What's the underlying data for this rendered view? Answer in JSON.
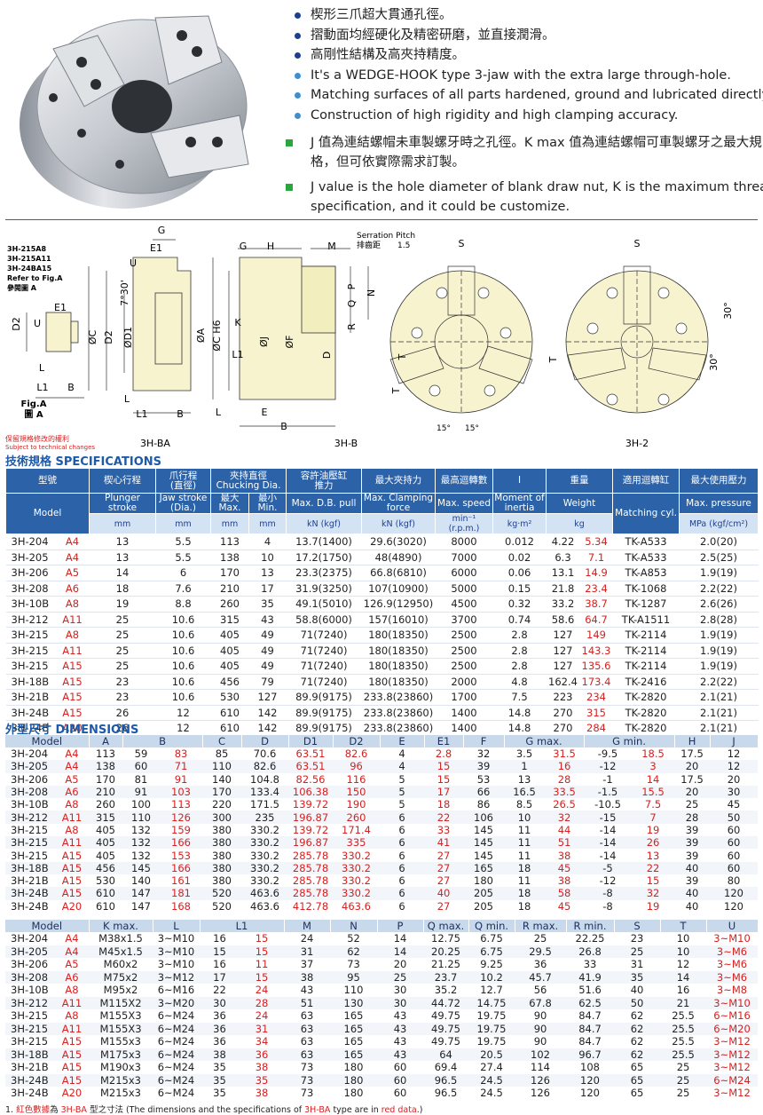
{
  "features": {
    "bullets": [
      "楔形三爪超大貫通孔徑。",
      "摺動面均經硬化及精密研磨，並直接潤滑。",
      "高剛性結構及高夾持精度。",
      "It's a WEDGE-HOOK type 3-jaw with the extra large through-hole.",
      "Matching surfaces of all parts hardened, ground and lubricated directly.",
      "Construction of high rigidity and high clamping accuracy."
    ],
    "notes": [
      "J 值為連結螺帽未車製螺牙時之孔徑。K max 值為連結螺帽可車製螺牙之最大規格，但可依實際需求訂製。",
      "J value is the hole diameter of blank draw nut, K is the maximum thread specification, and it could be customize."
    ]
  },
  "drawing": {
    "labels": [
      "3H-215A8",
      "3H-215A11",
      "3H-24BA15",
      "Refer to Fig.A",
      "參閱圖 A",
      "D2",
      "U",
      "E1",
      "L",
      "L1",
      "B",
      "Fig.A",
      "圖 A",
      "G",
      "E1",
      "U",
      "7°30'",
      "ØC",
      "D2",
      "ØD1",
      "L",
      "L1",
      "B",
      "3H-BA",
      "G",
      "H",
      "M",
      "Serration Pitch",
      "排齒距",
      "1.5",
      "P",
      "Q",
      "R",
      "N",
      "ØA",
      "ØC H6",
      "K",
      "ØJ",
      "ØF",
      "L1",
      "D",
      "L",
      "E",
      "B",
      "3H-B",
      "S",
      "T",
      "T",
      "15°",
      "15°",
      "S",
      "30°",
      "30°",
      "T",
      "3H-2"
    ],
    "notice": [
      "保留規格修改的權利",
      "Subject to technical changes"
    ]
  },
  "specifications": {
    "title": "技術規格 SPECIFICATIONS",
    "header_row1": [
      "型號",
      "楔心行程",
      "爪行程\n(直徑)",
      "夾持直徑\nChucking Dia.",
      "容許油壓缸\n推力",
      "最大夾持力",
      "最高迴轉數",
      "I",
      "重量",
      "適用迴轉缸",
      "最大使用壓力"
    ],
    "header_row2": [
      "Model",
      "Plunger stroke",
      "Jaw stroke\n(Dia.)",
      "最大\nMax.",
      "最小\nMin.",
      "Max. D.B. pull",
      "Max. Clamping\nforce",
      "Max. speed",
      "Moment of\ninertia",
      "Weight",
      "Matching cyl.",
      "Max. pressure"
    ],
    "units": [
      "mm",
      "mm",
      "mm",
      "mm",
      "kN (kgf)",
      "kN (kgf)",
      "min⁻¹ (r.p.m.)",
      "kg·m²",
      "kg",
      "MPa (kgf/cm²)"
    ],
    "rows": [
      [
        "3H-204",
        "A4",
        "13",
        "5.5",
        "113",
        "4",
        "13.7(1400)",
        "29.6(3020)",
        "8000",
        "0.012",
        "4.22",
        "5.34",
        "TK-A533",
        "2.0(20)"
      ],
      [
        "3H-205",
        "A4",
        "13",
        "5.5",
        "138",
        "10",
        "17.2(1750)",
        "48(4890)",
        "7000",
        "0.02",
        "6.3",
        "7.1",
        "TK-A533",
        "2.5(25)"
      ],
      [
        "3H-206",
        "A5",
        "14",
        "6",
        "170",
        "13",
        "23.3(2375)",
        "66.8(6810)",
        "6000",
        "0.06",
        "13.1",
        "14.9",
        "TK-A853",
        "1.9(19)"
      ],
      [
        "3H-208",
        "A6",
        "18",
        "7.6",
        "210",
        "17",
        "31.9(3250)",
        "107(10900)",
        "5000",
        "0.15",
        "21.8",
        "23.4",
        "TK-1068",
        "2.2(22)"
      ],
      [
        "3H-10B",
        "A8",
        "19",
        "8.8",
        "260",
        "35",
        "49.1(5010)",
        "126.9(12950)",
        "4500",
        "0.32",
        "33.2",
        "38.7",
        "TK-1287",
        "2.6(26)"
      ],
      [
        "3H-212",
        "A11",
        "25",
        "10.6",
        "315",
        "43",
        "58.8(6000)",
        "157(16010)",
        "3700",
        "0.74",
        "58.6",
        "64.7",
        "TK-A1511",
        "2.8(28)"
      ],
      [
        "3H-215",
        "A8",
        "25",
        "10.6",
        "405",
        "49",
        "71(7240)",
        "180(18350)",
        "2500",
        "2.8",
        "127",
        "149",
        "TK-2114",
        "1.9(19)"
      ],
      [
        "3H-215",
        "A11",
        "25",
        "10.6",
        "405",
        "49",
        "71(7240)",
        "180(18350)",
        "2500",
        "2.8",
        "127",
        "143.3",
        "TK-2114",
        "1.9(19)"
      ],
      [
        "3H-215",
        "A15",
        "25",
        "10.6",
        "405",
        "49",
        "71(7240)",
        "180(18350)",
        "2500",
        "2.8",
        "127",
        "135.6",
        "TK-2114",
        "1.9(19)"
      ],
      [
        "3H-18B",
        "A15",
        "23",
        "10.6",
        "456",
        "79",
        "71(7240)",
        "180(18350)",
        "2000",
        "4.8",
        "162.4",
        "173.4",
        "TK-2416",
        "2.2(22)"
      ],
      [
        "3H-21B",
        "A15",
        "23",
        "10.6",
        "530",
        "127",
        "89.9(9175)",
        "233.8(23860)",
        "1700",
        "7.5",
        "223",
        "234",
        "TK-2820",
        "2.1(21)"
      ],
      [
        "3H-24B",
        "A15",
        "26",
        "12",
        "610",
        "142",
        "89.9(9175)",
        "233.8(23860)",
        "1400",
        "14.8",
        "270",
        "315",
        "TK-2820",
        "2.1(21)"
      ],
      [
        "3H-24B",
        "A20",
        "26",
        "12",
        "610",
        "142",
        "89.9(9175)",
        "233.8(23860)",
        "1400",
        "14.8",
        "270",
        "284",
        "TK-2820",
        "2.1(21)"
      ]
    ]
  },
  "dimensions": {
    "title": "外型尺寸 DIMENSIONS",
    "table1": {
      "header": [
        "Model",
        "A",
        "B",
        "C",
        "D",
        "D1",
        "D2",
        "E",
        "E1",
        "F",
        "G max.",
        "G min.",
        "H",
        "J"
      ],
      "rows": [
        [
          "3H-204",
          "A4",
          "113",
          "59",
          "83",
          "85",
          "70.6",
          "63.51",
          "82.6",
          "4",
          "2.8",
          "32",
          "3.5",
          "31.5",
          "-9.5",
          "18.5",
          "17.5",
          "12"
        ],
        [
          "3H-205",
          "A4",
          "138",
          "60",
          "71",
          "110",
          "82.6",
          "63.51",
          "96",
          "4",
          "15",
          "39",
          "1",
          "16",
          "-12",
          "3",
          "20",
          "12"
        ],
        [
          "3H-206",
          "A5",
          "170",
          "81",
          "91",
          "140",
          "104.8",
          "82.56",
          "116",
          "5",
          "15",
          "53",
          "13",
          "28",
          "-1",
          "14",
          "17.5",
          "20"
        ],
        [
          "3H-208",
          "A6",
          "210",
          "91",
          "103",
          "170",
          "133.4",
          "106.38",
          "150",
          "5",
          "17",
          "66",
          "16.5",
          "33.5",
          "-1.5",
          "15.5",
          "20",
          "30"
        ],
        [
          "3H-10B",
          "A8",
          "260",
          "100",
          "113",
          "220",
          "171.5",
          "139.72",
          "190",
          "5",
          "18",
          "86",
          "8.5",
          "26.5",
          "-10.5",
          "7.5",
          "25",
          "45"
        ],
        [
          "3H-212",
          "A11",
          "315",
          "110",
          "126",
          "300",
          "235",
          "196.87",
          "260",
          "6",
          "22",
          "106",
          "10",
          "32",
          "-15",
          "7",
          "28",
          "50"
        ],
        [
          "3H-215",
          "A8",
          "405",
          "132",
          "159",
          "380",
          "330.2",
          "139.72",
          "171.4",
          "6",
          "33",
          "145",
          "11",
          "44",
          "-14",
          "19",
          "39",
          "60"
        ],
        [
          "3H-215",
          "A11",
          "405",
          "132",
          "166",
          "380",
          "330.2",
          "196.87",
          "335",
          "6",
          "41",
          "145",
          "11",
          "51",
          "-14",
          "26",
          "39",
          "60"
        ],
        [
          "3H-215",
          "A15",
          "405",
          "132",
          "153",
          "380",
          "330.2",
          "285.78",
          "330.2",
          "6",
          "27",
          "145",
          "11",
          "38",
          "-14",
          "13",
          "39",
          "60"
        ],
        [
          "3H-18B",
          "A15",
          "456",
          "145",
          "166",
          "380",
          "330.2",
          "285.78",
          "330.2",
          "6",
          "27",
          "165",
          "18",
          "45",
          "-5",
          "22",
          "40",
          "60"
        ],
        [
          "3H-21B",
          "A15",
          "530",
          "140",
          "161",
          "380",
          "330.2",
          "285.78",
          "330.2",
          "6",
          "27",
          "180",
          "11",
          "38",
          "-12",
          "15",
          "39",
          "80"
        ],
        [
          "3H-24B",
          "A15",
          "610",
          "147",
          "181",
          "520",
          "463.6",
          "285.78",
          "330.2",
          "6",
          "40",
          "205",
          "18",
          "58",
          "-8",
          "32",
          "40",
          "120"
        ],
        [
          "3H-24B",
          "A20",
          "610",
          "147",
          "168",
          "520",
          "463.6",
          "412.78",
          "463.6",
          "6",
          "27",
          "205",
          "18",
          "45",
          "-8",
          "19",
          "40",
          "120"
        ]
      ]
    },
    "table2": {
      "header": [
        "Model",
        "K max.",
        "L",
        "L1",
        "M",
        "N",
        "P",
        "Q max.",
        "Q min.",
        "R max.",
        "R min.",
        "S",
        "T",
        "U"
      ],
      "rows": [
        [
          "3H-204",
          "A4",
          "M38x1.5",
          "3~M10",
          "16",
          "15",
          "24",
          "52",
          "14",
          "12.75",
          "6.75",
          "25",
          "22.25",
          "23",
          "10",
          "3~M10"
        ],
        [
          "3H-205",
          "A4",
          "M45x1.5",
          "3~M10",
          "15",
          "15",
          "31",
          "62",
          "14",
          "20.25",
          "6.75",
          "29.5",
          "26.8",
          "25",
          "10",
          "3~M6"
        ],
        [
          "3H-206",
          "A5",
          "M60x2",
          "3~M10",
          "16",
          "11",
          "37",
          "73",
          "20",
          "21.25",
          "9.25",
          "36",
          "33",
          "31",
          "12",
          "3~M6"
        ],
        [
          "3H-208",
          "A6",
          "M75x2",
          "3~M12",
          "17",
          "15",
          "38",
          "95",
          "25",
          "23.7",
          "10.2",
          "45.7",
          "41.9",
          "35",
          "14",
          "3~M6"
        ],
        [
          "3H-10B",
          "A8",
          "M95x2",
          "6~M16",
          "22",
          "24",
          "43",
          "110",
          "30",
          "35.2",
          "12.7",
          "56",
          "51.6",
          "40",
          "16",
          "3~M8"
        ],
        [
          "3H-212",
          "A11",
          "M115X2",
          "3~M20",
          "30",
          "28",
          "51",
          "130",
          "30",
          "44.72",
          "14.75",
          "67.8",
          "62.5",
          "50",
          "21",
          "3~M10"
        ],
        [
          "3H-215",
          "A8",
          "M155X3",
          "6~M24",
          "36",
          "24",
          "63",
          "165",
          "43",
          "49.75",
          "19.75",
          "90",
          "84.7",
          "62",
          "25.5",
          "6~M16"
        ],
        [
          "3H-215",
          "A11",
          "M155X3",
          "6~M24",
          "36",
          "31",
          "63",
          "165",
          "43",
          "49.75",
          "19.75",
          "90",
          "84.7",
          "62",
          "25.5",
          "6~M20"
        ],
        [
          "3H-215",
          "A15",
          "M155x3",
          "6~M24",
          "36",
          "34",
          "63",
          "165",
          "43",
          "49.75",
          "19.75",
          "90",
          "84.7",
          "62",
          "25.5",
          "3~M12"
        ],
        [
          "3H-18B",
          "A15",
          "M175x3",
          "6~M24",
          "38",
          "36",
          "63",
          "165",
          "43",
          "64",
          "20.5",
          "102",
          "96.7",
          "62",
          "25.5",
          "3~M12"
        ],
        [
          "3H-21B",
          "A15",
          "M190x3",
          "6~M24",
          "35",
          "38",
          "73",
          "180",
          "60",
          "69.4",
          "27.4",
          "114",
          "108",
          "65",
          "25",
          "3~M12"
        ],
        [
          "3H-24B",
          "A15",
          "M215x3",
          "6~M24",
          "35",
          "35",
          "73",
          "180",
          "60",
          "96.5",
          "24.5",
          "126",
          "120",
          "65",
          "25",
          "6~M24"
        ],
        [
          "3H-24B",
          "A20",
          "M215x3",
          "6~M24",
          "35",
          "38",
          "73",
          "180",
          "60",
          "96.5",
          "24.5",
          "126",
          "120",
          "65",
          "25",
          "3~M12"
        ]
      ]
    }
  },
  "footnote": [
    "1. ",
    "紅色數據",
    "為 ",
    "3H-BA",
    " 型之寸法 (The dimensions and the specifications of ",
    "3H-BA",
    " type are in ",
    "red data",
    ".)"
  ]
}
